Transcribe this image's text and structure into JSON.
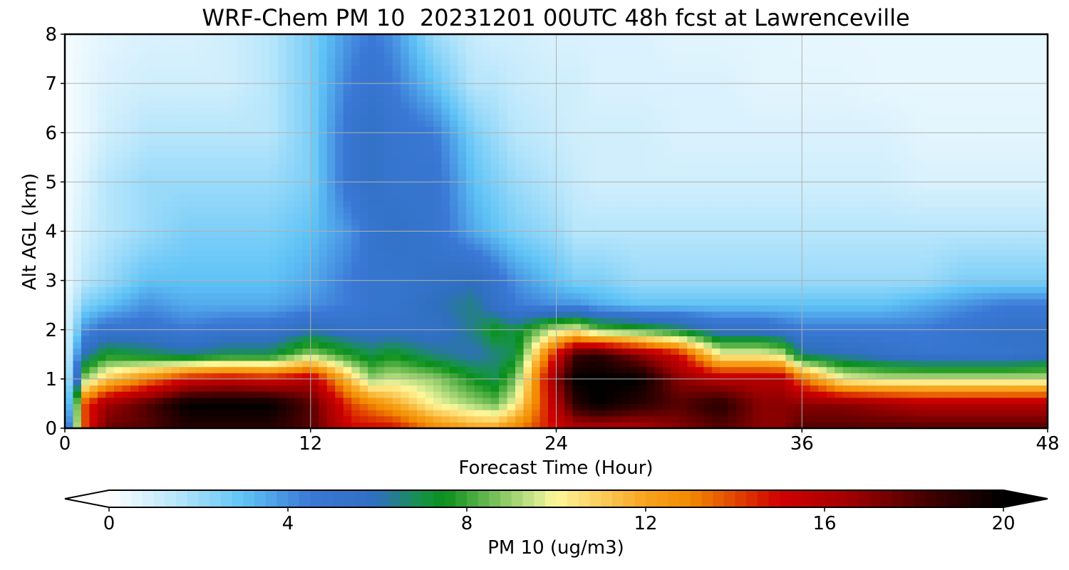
{
  "chart_data": {
    "type": "heatmap",
    "title": "WRF-Chem PM 10  20231201 00UTC 48h fcst at Lawrenceville",
    "xlabel": "Forecast Time (Hour)",
    "ylabel": "Alt AGL (km)",
    "xlim": [
      0,
      48
    ],
    "ylim": [
      0,
      8
    ],
    "x_ticks": [
      "0",
      "12",
      "24",
      "36",
      "48"
    ],
    "y_ticks": [
      "0",
      "1",
      "2",
      "3",
      "4",
      "5",
      "6",
      "7",
      "8"
    ],
    "grid": true,
    "colorbar": {
      "label": "PM 10  (ug/m3)",
      "range": [
        0,
        20
      ],
      "ticks": [
        "0",
        "4",
        "8",
        "12",
        "16",
        "20"
      ],
      "extend": "both",
      "stops": [
        {
          "value": 0,
          "color": "#ffffff"
        },
        {
          "value": 1.5,
          "color": "#b8e6fb"
        },
        {
          "value": 3,
          "color": "#5fc3f6"
        },
        {
          "value": 4.5,
          "color": "#3a78d6"
        },
        {
          "value": 6,
          "color": "#2f6fbf"
        },
        {
          "value": 7,
          "color": "#169346"
        },
        {
          "value": 7.5,
          "color": "#0a8f1a"
        },
        {
          "value": 9.5,
          "color": "#cbe68a"
        },
        {
          "value": 10,
          "color": "#fff79a"
        },
        {
          "value": 12,
          "color": "#f7a31c"
        },
        {
          "value": 13,
          "color": "#f28a00"
        },
        {
          "value": 15,
          "color": "#d00000"
        },
        {
          "value": 16.5,
          "color": "#a40000"
        },
        {
          "value": 18.5,
          "color": "#3a0000"
        },
        {
          "value": 20,
          "color": "#000000"
        }
      ]
    },
    "x": [
      0,
      1,
      2,
      4,
      6,
      8,
      10,
      12,
      14,
      15,
      16,
      18,
      20,
      21,
      22,
      24,
      25,
      26,
      28,
      30,
      32,
      34,
      35,
      36,
      38,
      40,
      42,
      44,
      46,
      48
    ],
    "y": [
      0,
      0.5,
      1,
      1.5,
      2,
      2.5,
      3,
      4,
      5,
      6,
      7,
      8
    ],
    "z": [
      [
        2,
        14,
        17.5,
        18,
        19,
        19,
        19,
        18,
        15,
        15,
        15,
        13,
        12,
        12,
        13,
        15,
        16,
        16,
        16,
        17,
        18,
        17,
        17,
        18,
        18,
        18,
        18,
        18,
        18,
        18
      ],
      [
        0.5,
        14,
        16.5,
        18,
        20,
        20,
        20,
        18,
        14,
        13,
        12,
        10,
        9,
        8.5,
        10,
        16,
        19,
        20,
        19,
        18,
        19,
        17,
        17,
        17,
        17,
        16.5,
        16,
        16,
        16,
        16
      ],
      [
        0.5,
        9,
        11,
        13,
        15,
        15.5,
        15,
        16,
        11,
        9,
        9.5,
        9,
        7.5,
        7,
        8.5,
        17,
        20,
        20,
        20,
        17,
        16,
        16,
        16,
        13.5,
        10,
        9.5,
        9.5,
        9.5,
        9.5,
        9.5
      ],
      [
        0.5,
        6,
        7.5,
        7,
        6.5,
        7,
        7,
        9,
        7.5,
        7,
        7.5,
        6.5,
        6,
        6.5,
        7,
        15,
        18.5,
        19,
        17,
        15,
        10,
        10,
        9.5,
        6.5,
        6,
        5.5,
        5,
        5,
        5,
        5.5
      ],
      [
        0.5,
        4,
        5,
        5,
        4.5,
        5,
        5,
        6,
        5.5,
        5.5,
        5.5,
        5.5,
        6.5,
        7.5,
        7,
        9.5,
        10,
        8.5,
        8,
        7,
        5.5,
        5.5,
        5,
        4.5,
        4.5,
        4.5,
        4.5,
        5,
        5.5,
        5.5
      ],
      [
        0.5,
        2.5,
        3,
        4,
        3.5,
        3.5,
        3.5,
        4,
        4.5,
        5,
        5,
        6,
        6.5,
        5.5,
        4.5,
        4,
        4,
        3.5,
        3,
        3,
        3,
        3,
        3,
        3,
        3,
        3,
        3.5,
        4,
        4.5,
        4.5
      ],
      [
        0.3,
        1.5,
        2,
        3,
        3,
        3,
        3,
        3.5,
        4.5,
        5,
        5,
        5.5,
        6,
        5,
        4,
        3,
        2.5,
        2.5,
        2,
        2,
        2,
        2,
        2,
        2,
        2,
        2,
        2,
        2.5,
        2.5,
        2.5
      ],
      [
        0.3,
        1,
        1.5,
        2,
        2.5,
        2.5,
        2.5,
        3,
        4,
        5,
        5.5,
        5,
        3.5,
        3,
        2.5,
        2,
        1.5,
        1.5,
        1.5,
        1.5,
        1.5,
        1.5,
        1.5,
        1.5,
        1.5,
        1.5,
        1.5,
        1.5,
        1.5,
        1.5
      ],
      [
        0.2,
        0.8,
        1.5,
        2,
        2,
        2,
        2,
        2.5,
        5,
        5.5,
        5,
        5,
        3,
        2.5,
        2,
        1.5,
        1.2,
        1,
        1,
        1,
        1,
        1,
        1,
        1,
        1,
        1,
        0.8,
        0.8,
        0.8,
        0.8
      ],
      [
        0.2,
        0.5,
        1,
        1.5,
        1.5,
        1.5,
        1.5,
        2.5,
        5,
        5.5,
        5,
        4.5,
        2.5,
        2,
        1.5,
        1.2,
        1,
        1,
        1,
        0.8,
        0.8,
        0.8,
        0.8,
        0.8,
        0.8,
        0.8,
        0.6,
        0.6,
        0.6,
        0.6
      ],
      [
        0.2,
        0.5,
        0.8,
        1,
        1,
        1,
        1.5,
        2.5,
        4.5,
        5,
        4.5,
        3,
        1.5,
        1.5,
        1.2,
        1,
        1,
        0.8,
        0.8,
        0.8,
        0.8,
        0.6,
        0.6,
        0.6,
        0.6,
        0.5,
        0.5,
        0.5,
        0.5,
        0.5
      ],
      [
        0.2,
        0.4,
        0.6,
        0.8,
        0.8,
        1,
        1.5,
        2.5,
        4,
        4.5,
        4,
        2,
        1.2,
        1,
        1,
        0.8,
        0.8,
        0.8,
        0.8,
        0.6,
        0.6,
        0.6,
        0.6,
        0.5,
        0.5,
        0.5,
        0.5,
        0.5,
        0.5,
        0.5
      ]
    ]
  }
}
